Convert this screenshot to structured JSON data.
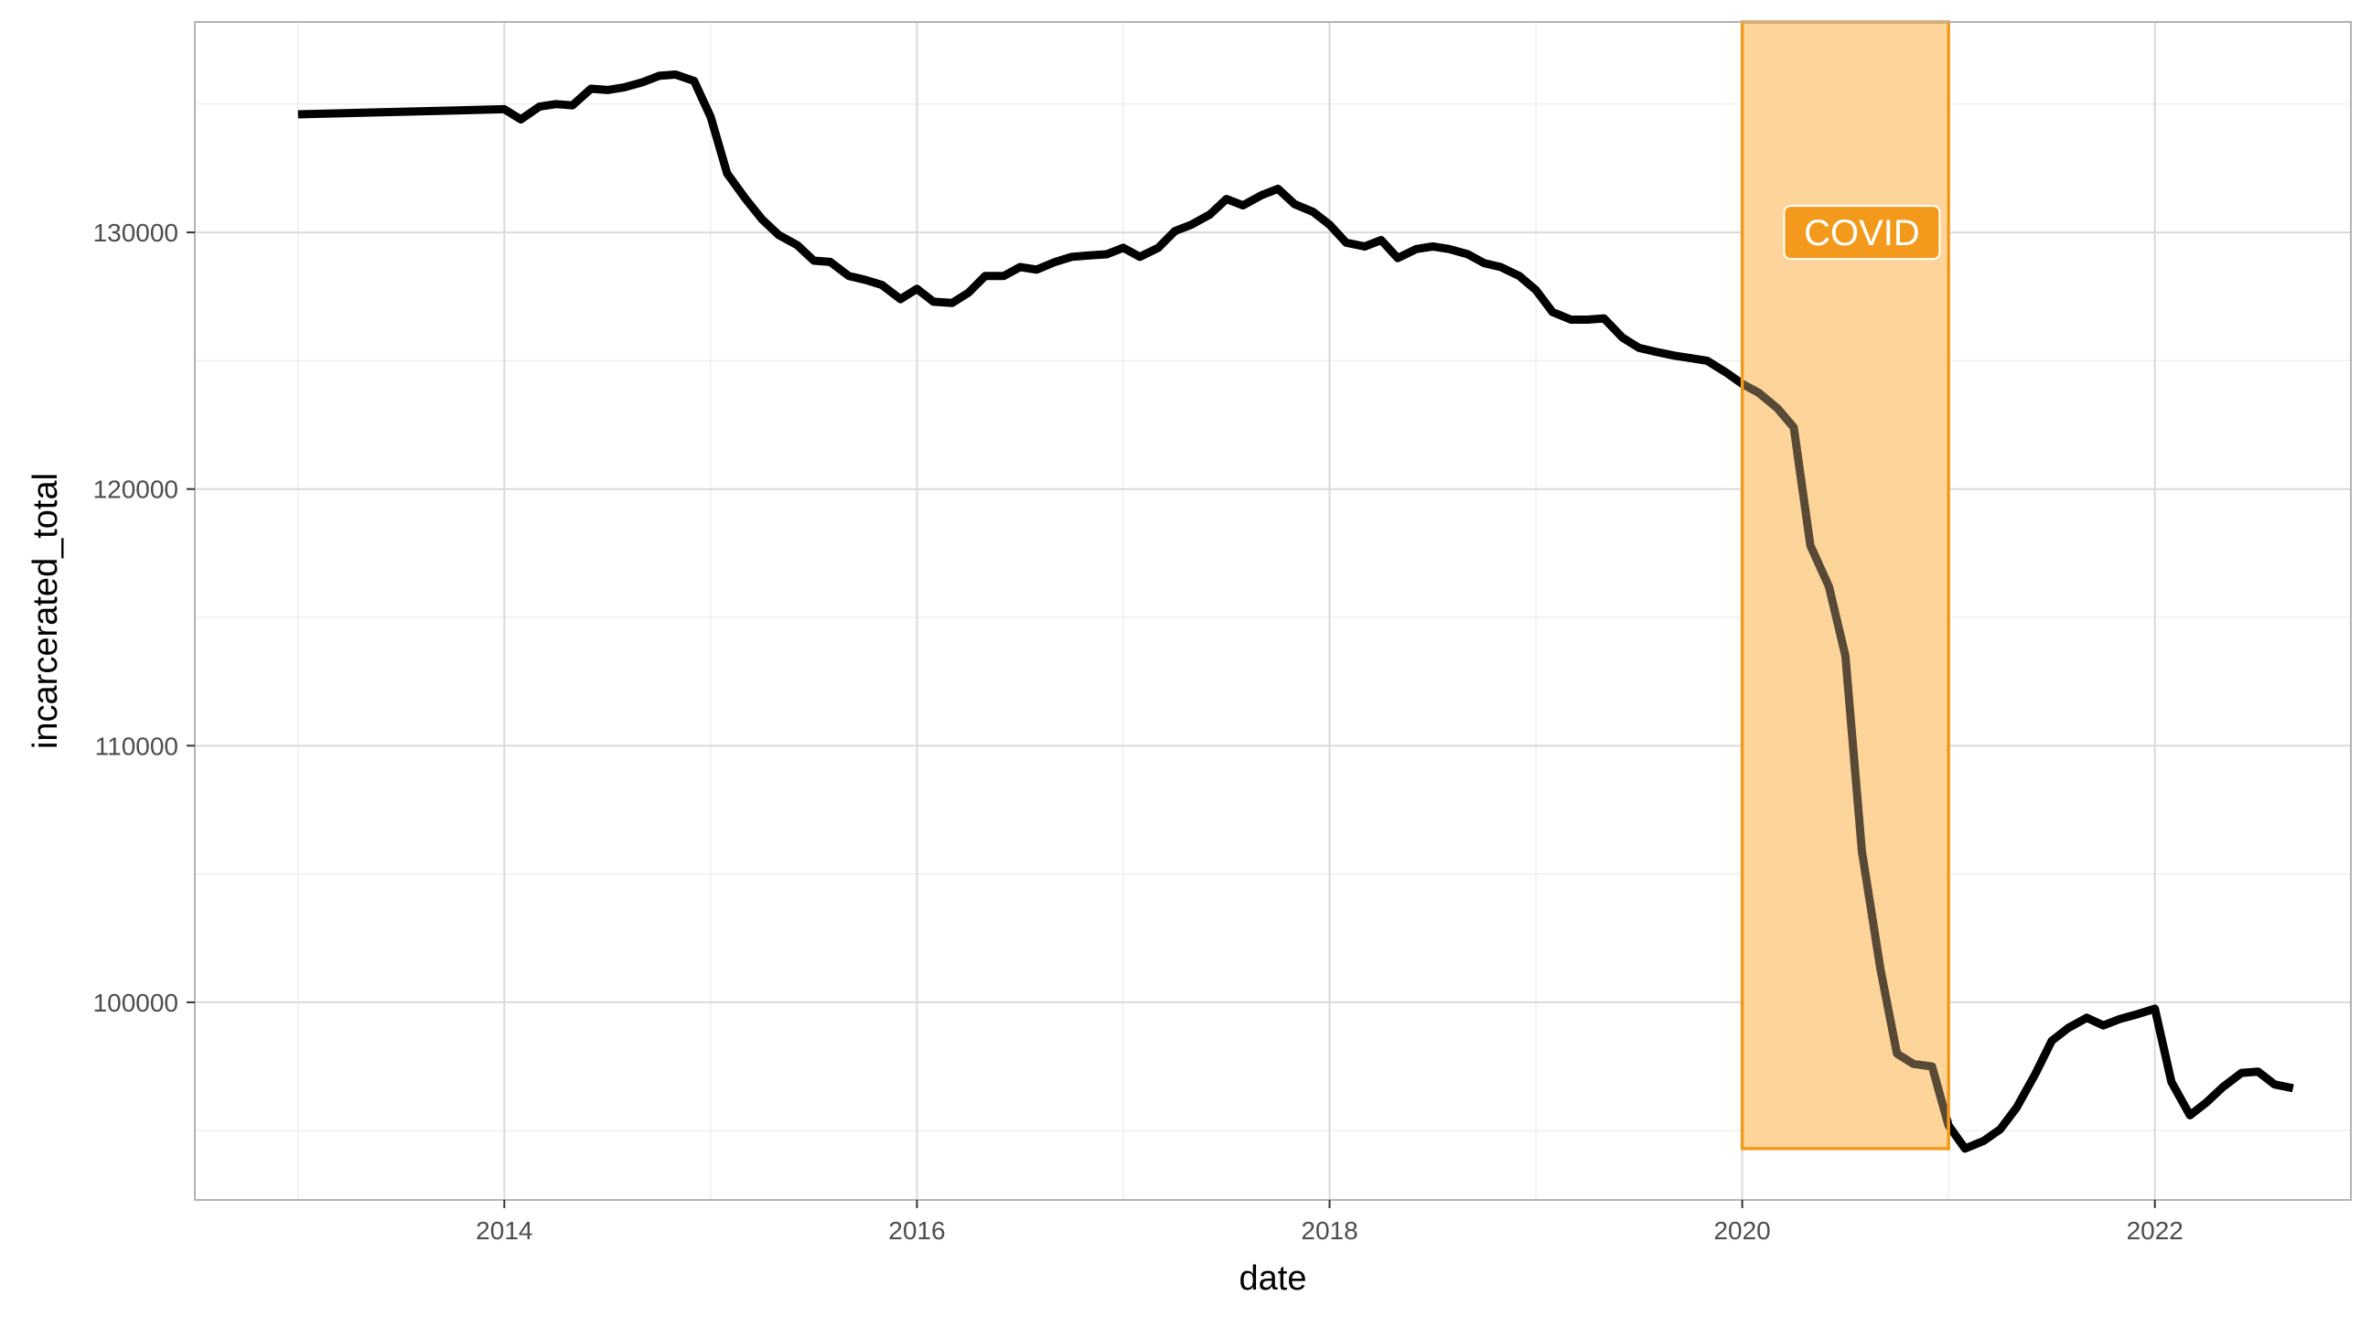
{
  "chart_data": {
    "type": "line",
    "xlabel": "date",
    "ylabel": "incarcerated_total",
    "x_ticks": [
      2014,
      2016,
      2018,
      2020,
      2022
    ],
    "x_tick_labels": [
      "2014",
      "2016",
      "2018",
      "2020",
      "2022"
    ],
    "y_ticks": [
      100000,
      110000,
      120000,
      130000
    ],
    "y_tick_labels": [
      "100000",
      "110000",
      "120000",
      "130000"
    ],
    "xlim": [
      2012.5,
      2022.95
    ],
    "ylim": [
      92300,
      138200
    ],
    "grid": true,
    "legend": "none",
    "colors": {
      "line": "#000000",
      "band_fill": "#fdd49a",
      "band_stroke": "#f39a1c",
      "label_bg": "#f39a1c",
      "label_text": "#ffffff",
      "grid": "#d9d9d9",
      "panel_border": "#b3b3b3"
    },
    "series": [
      {
        "x": [
          2013.0,
          2014.0,
          2014.08,
          2014.17,
          2014.25,
          2014.33,
          2014.42,
          2014.5,
          2014.58,
          2014.67,
          2014.75,
          2014.83,
          2014.92,
          2015.0,
          2015.08,
          2015.17,
          2015.25,
          2015.33,
          2015.42,
          2015.5,
          2015.58,
          2015.67,
          2015.75,
          2015.83,
          2015.92,
          2016.0,
          2016.08,
          2016.17,
          2016.25,
          2016.33,
          2016.42,
          2016.5,
          2016.58,
          2016.67,
          2016.75,
          2016.83,
          2016.92,
          2017.0,
          2017.08,
          2017.17,
          2017.25,
          2017.33,
          2017.42,
          2017.5,
          2017.58,
          2017.67,
          2017.75,
          2017.83,
          2017.92,
          2018.0,
          2018.08,
          2018.17,
          2018.25,
          2018.33,
          2018.42,
          2018.5,
          2018.58,
          2018.67,
          2018.75,
          2018.83,
          2018.92,
          2019.0,
          2019.08,
          2019.17,
          2019.25,
          2019.33,
          2019.42,
          2019.5,
          2019.58,
          2019.67,
          2019.75,
          2019.83,
          2019.92,
          2020.0,
          2020.08,
          2020.17,
          2020.25,
          2020.33,
          2020.42,
          2020.5,
          2020.58,
          2020.67,
          2020.75,
          2020.83,
          2020.92,
          2021.0,
          2021.08,
          2021.17,
          2021.25,
          2021.33,
          2021.42,
          2021.5,
          2021.58,
          2021.67,
          2021.75,
          2021.83,
          2021.92,
          2022.0,
          2022.08,
          2022.17,
          2022.25,
          2022.33,
          2022.42,
          2022.5,
          2022.58,
          2022.67
        ],
        "values": [
          134600,
          134800,
          134400,
          134900,
          135000,
          134950,
          135600,
          135550,
          135650,
          135850,
          136100,
          136150,
          135900,
          134500,
          132300,
          131300,
          130500,
          129900,
          129500,
          128900,
          128850,
          128300,
          128150,
          127950,
          127400,
          127800,
          127300,
          127250,
          127650,
          128300,
          128300,
          128650,
          128550,
          128850,
          129050,
          129100,
          129150,
          129400,
          129050,
          129400,
          130050,
          130300,
          130700,
          131300,
          131050,
          131450,
          131700,
          131100,
          130800,
          130300,
          129600,
          129450,
          129700,
          129000,
          129350,
          129450,
          129350,
          129150,
          128800,
          128650,
          128300,
          127750,
          126900,
          126600,
          126600,
          126650,
          125900,
          125500,
          125350,
          125200,
          125100,
          125000,
          124550,
          124100,
          123750,
          123150,
          122400,
          117800,
          116200,
          113500,
          105900,
          101300,
          98000,
          97600,
          97500,
          95200,
          94300,
          94600,
          95050,
          95900,
          97200,
          98500,
          99000,
          99400,
          99100,
          99350,
          99550,
          99750,
          96900,
          95600,
          96100,
          96700,
          97250,
          97300,
          96800,
          96650
        ]
      }
    ],
    "annotation": {
      "label": "COVID",
      "x_start": 2020.0,
      "x_end": 2021.0,
      "y_bottom": 94300,
      "label_x": 2020.58,
      "label_y": 130000
    }
  }
}
